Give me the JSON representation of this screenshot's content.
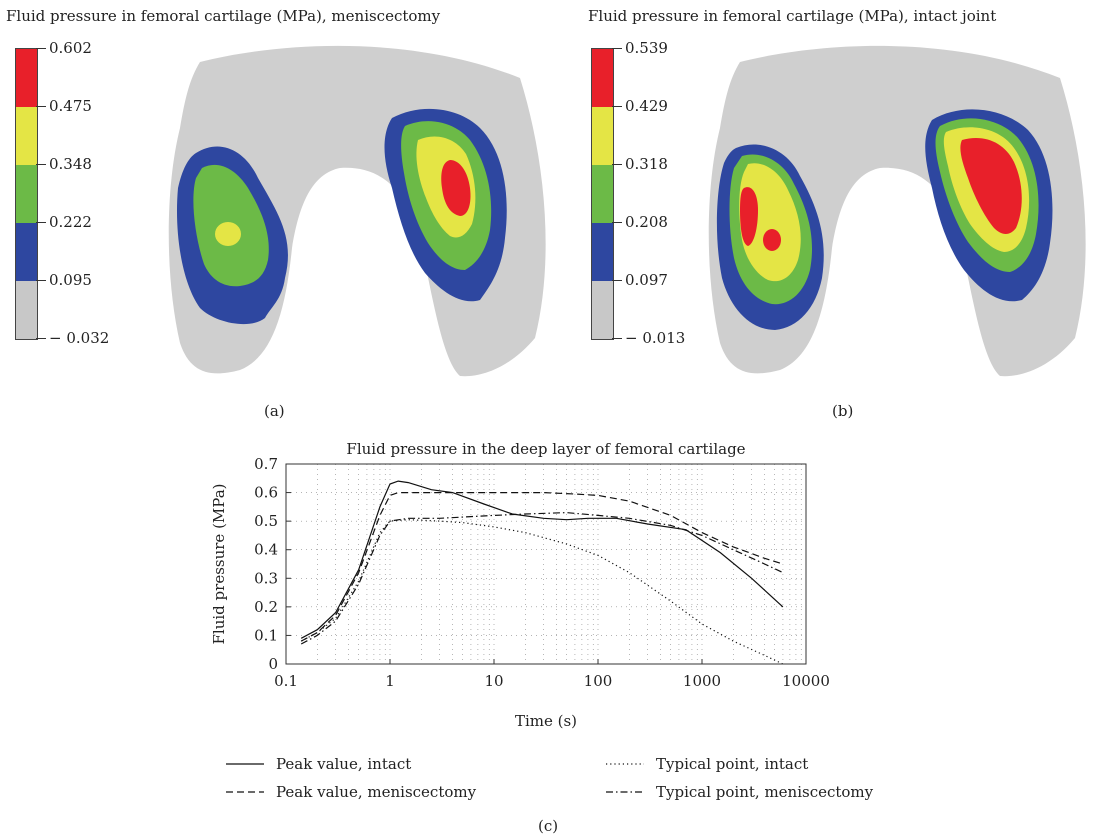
{
  "panels": [
    {
      "title": "Fluid pressure in femoral cartilage (MPa), meniscectomy",
      "label": "(a)",
      "colorbar": {
        "ticks": [
          "0.602",
          "0.475",
          "0.348",
          "0.222",
          "0.095",
          "− 0.032"
        ],
        "colors": [
          "#e8202a",
          "#e4e545",
          "#6cba47",
          "#2e47a0",
          "#c8c8c8"
        ]
      }
    },
    {
      "title": "Fluid pressure in femoral cartilage (MPa), intact joint",
      "label": "(b)",
      "colorbar": {
        "ticks": [
          "0.539",
          "0.429",
          "0.318",
          "0.208",
          "0.097",
          "− 0.013"
        ],
        "colors": [
          "#e8202a",
          "#e4e545",
          "#6cba47",
          "#2e47a0",
          "#c8c8c8"
        ]
      }
    }
  ],
  "chart_label": "(c)",
  "chart_data": {
    "type": "line",
    "title": "Fluid pressure in the deep layer of femoral cartilage",
    "xlabel": "Time (s)",
    "ylabel": "Fluid pressure (MPa)",
    "xscale": "log",
    "xlim": [
      0.1,
      10000
    ],
    "ylim": [
      0,
      0.7
    ],
    "xticks": [
      "0.1",
      "1",
      "10",
      "100",
      "1000",
      "10000"
    ],
    "yticks": [
      "0",
      "0.1",
      "0.2",
      "0.3",
      "0.4",
      "0.5",
      "0.6",
      "0.7"
    ],
    "grid": true,
    "legend_position": "bottom",
    "series": [
      {
        "name": "Peak value, intact",
        "style": "solid",
        "x": [
          0.14,
          0.2,
          0.3,
          0.5,
          0.8,
          1.0,
          1.2,
          1.5,
          2.5,
          4,
          8,
          15,
          30,
          50,
          80,
          150,
          300,
          700,
          1500,
          3000,
          6000
        ],
        "y": [
          0.09,
          0.12,
          0.18,
          0.33,
          0.55,
          0.63,
          0.64,
          0.635,
          0.61,
          0.6,
          0.56,
          0.525,
          0.51,
          0.505,
          0.51,
          0.51,
          0.49,
          0.47,
          0.39,
          0.3,
          0.2
        ]
      },
      {
        "name": "Peak value, meniscectomy",
        "style": "dashed",
        "x": [
          0.14,
          0.2,
          0.3,
          0.5,
          0.8,
          1.0,
          1.2,
          2,
          5,
          10,
          30,
          60,
          100,
          200,
          500,
          1000,
          2000,
          4000,
          6000
        ],
        "y": [
          0.08,
          0.11,
          0.17,
          0.32,
          0.52,
          0.59,
          0.6,
          0.6,
          0.6,
          0.6,
          0.6,
          0.595,
          0.59,
          0.57,
          0.52,
          0.46,
          0.41,
          0.37,
          0.35
        ]
      },
      {
        "name": "Typical point, intact",
        "style": "dotted",
        "x": [
          0.14,
          0.2,
          0.3,
          0.5,
          0.8,
          1.0,
          1.5,
          3,
          5,
          10,
          20,
          50,
          100,
          200,
          500,
          1000,
          2000,
          4000,
          6000
        ],
        "y": [
          0.08,
          0.11,
          0.16,
          0.29,
          0.46,
          0.5,
          0.505,
          0.5,
          0.495,
          0.48,
          0.46,
          0.42,
          0.38,
          0.32,
          0.22,
          0.14,
          0.08,
          0.03,
          0.0
        ]
      },
      {
        "name": "Typical point, meniscectomy",
        "style": "dashdot",
        "x": [
          0.14,
          0.2,
          0.3,
          0.5,
          0.8,
          1.0,
          1.5,
          3,
          10,
          20,
          50,
          100,
          200,
          500,
          1000,
          2000,
          4000,
          6000
        ],
        "y": [
          0.07,
          0.1,
          0.15,
          0.28,
          0.45,
          0.5,
          0.51,
          0.51,
          0.52,
          0.525,
          0.53,
          0.52,
          0.51,
          0.485,
          0.45,
          0.4,
          0.35,
          0.32
        ]
      }
    ]
  }
}
